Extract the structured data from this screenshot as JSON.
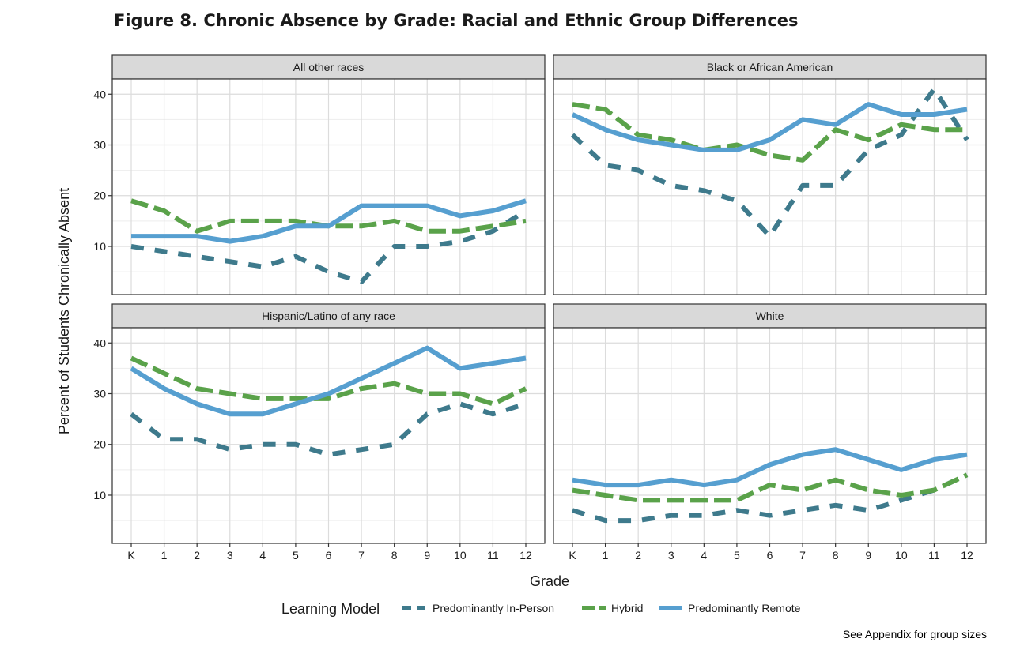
{
  "title": "Figure 8. Chronic Absence by Grade: Racial and Ethnic Group Differences",
  "footnote": "See Appendix for group sizes",
  "colors": {
    "Predominantly In-Person": "#3e7a8c",
    "Hybrid": "#5aa24a",
    "Predominantly Remote": "#569fd0"
  },
  "chart_data": {
    "type": "line",
    "xlabel": "Grade",
    "ylabel": "Percent of Students Chronically Absent",
    "x": [
      "K",
      "1",
      "2",
      "3",
      "4",
      "5",
      "6",
      "7",
      "8",
      "9",
      "10",
      "11",
      "12"
    ],
    "yticks": [
      10,
      20,
      30,
      40
    ],
    "ylim": [
      0.5,
      43
    ],
    "grid": true,
    "legend": {
      "title": "Learning Model",
      "position": "bottom",
      "entries": [
        "Predominantly In-Person",
        "Hybrid",
        "Predominantly Remote"
      ]
    },
    "panels": [
      {
        "title": "All other races",
        "series": [
          {
            "name": "Predominantly In-Person",
            "values": [
              10,
              9,
              8,
              7,
              6,
              8,
              5,
              3,
              10,
              10,
              11,
              13,
              17
            ]
          },
          {
            "name": "Hybrid",
            "values": [
              19,
              17,
              13,
              15,
              15,
              15,
              14,
              14,
              15,
              13,
              13,
              14,
              15
            ]
          },
          {
            "name": "Predominantly Remote",
            "values": [
              12,
              12,
              12,
              11,
              12,
              14,
              14,
              18,
              18,
              18,
              16,
              17,
              19
            ]
          }
        ]
      },
      {
        "title": "Black or African American",
        "series": [
          {
            "name": "Predominantly In-Person",
            "values": [
              32,
              26,
              25,
              22,
              21,
              19,
              12,
              22,
              22,
              29,
              32,
              41,
              31
            ]
          },
          {
            "name": "Hybrid",
            "values": [
              38,
              37,
              32,
              31,
              29,
              30,
              28,
              27,
              33,
              31,
              34,
              33,
              33
            ]
          },
          {
            "name": "Predominantly Remote",
            "values": [
              36,
              33,
              31,
              30,
              29,
              29,
              31,
              35,
              34,
              38,
              36,
              36,
              37
            ]
          }
        ]
      },
      {
        "title": "Hispanic/Latino of any race",
        "series": [
          {
            "name": "Predominantly In-Person",
            "values": [
              26,
              21,
              21,
              19,
              20,
              20,
              18,
              19,
              20,
              26,
              28,
              26,
              28
            ]
          },
          {
            "name": "Hybrid",
            "values": [
              37,
              34,
              31,
              30,
              29,
              29,
              29,
              31,
              32,
              30,
              30,
              28,
              31
            ]
          },
          {
            "name": "Predominantly Remote",
            "values": [
              35,
              31,
              28,
              26,
              26,
              28,
              30,
              33,
              36,
              39,
              35,
              36,
              37
            ]
          }
        ]
      },
      {
        "title": "White",
        "series": [
          {
            "name": "Predominantly In-Person",
            "values": [
              7,
              5,
              5,
              6,
              6,
              7,
              6,
              7,
              8,
              7,
              9,
              11,
              14
            ]
          },
          {
            "name": "Hybrid",
            "values": [
              11,
              10,
              9,
              9,
              9,
              9,
              12,
              11,
              13,
              11,
              10,
              11,
              14
            ]
          },
          {
            "name": "Predominantly Remote",
            "values": [
              13,
              12,
              12,
              13,
              12,
              13,
              16,
              18,
              19,
              17,
              15,
              17,
              18
            ]
          }
        ]
      }
    ]
  }
}
